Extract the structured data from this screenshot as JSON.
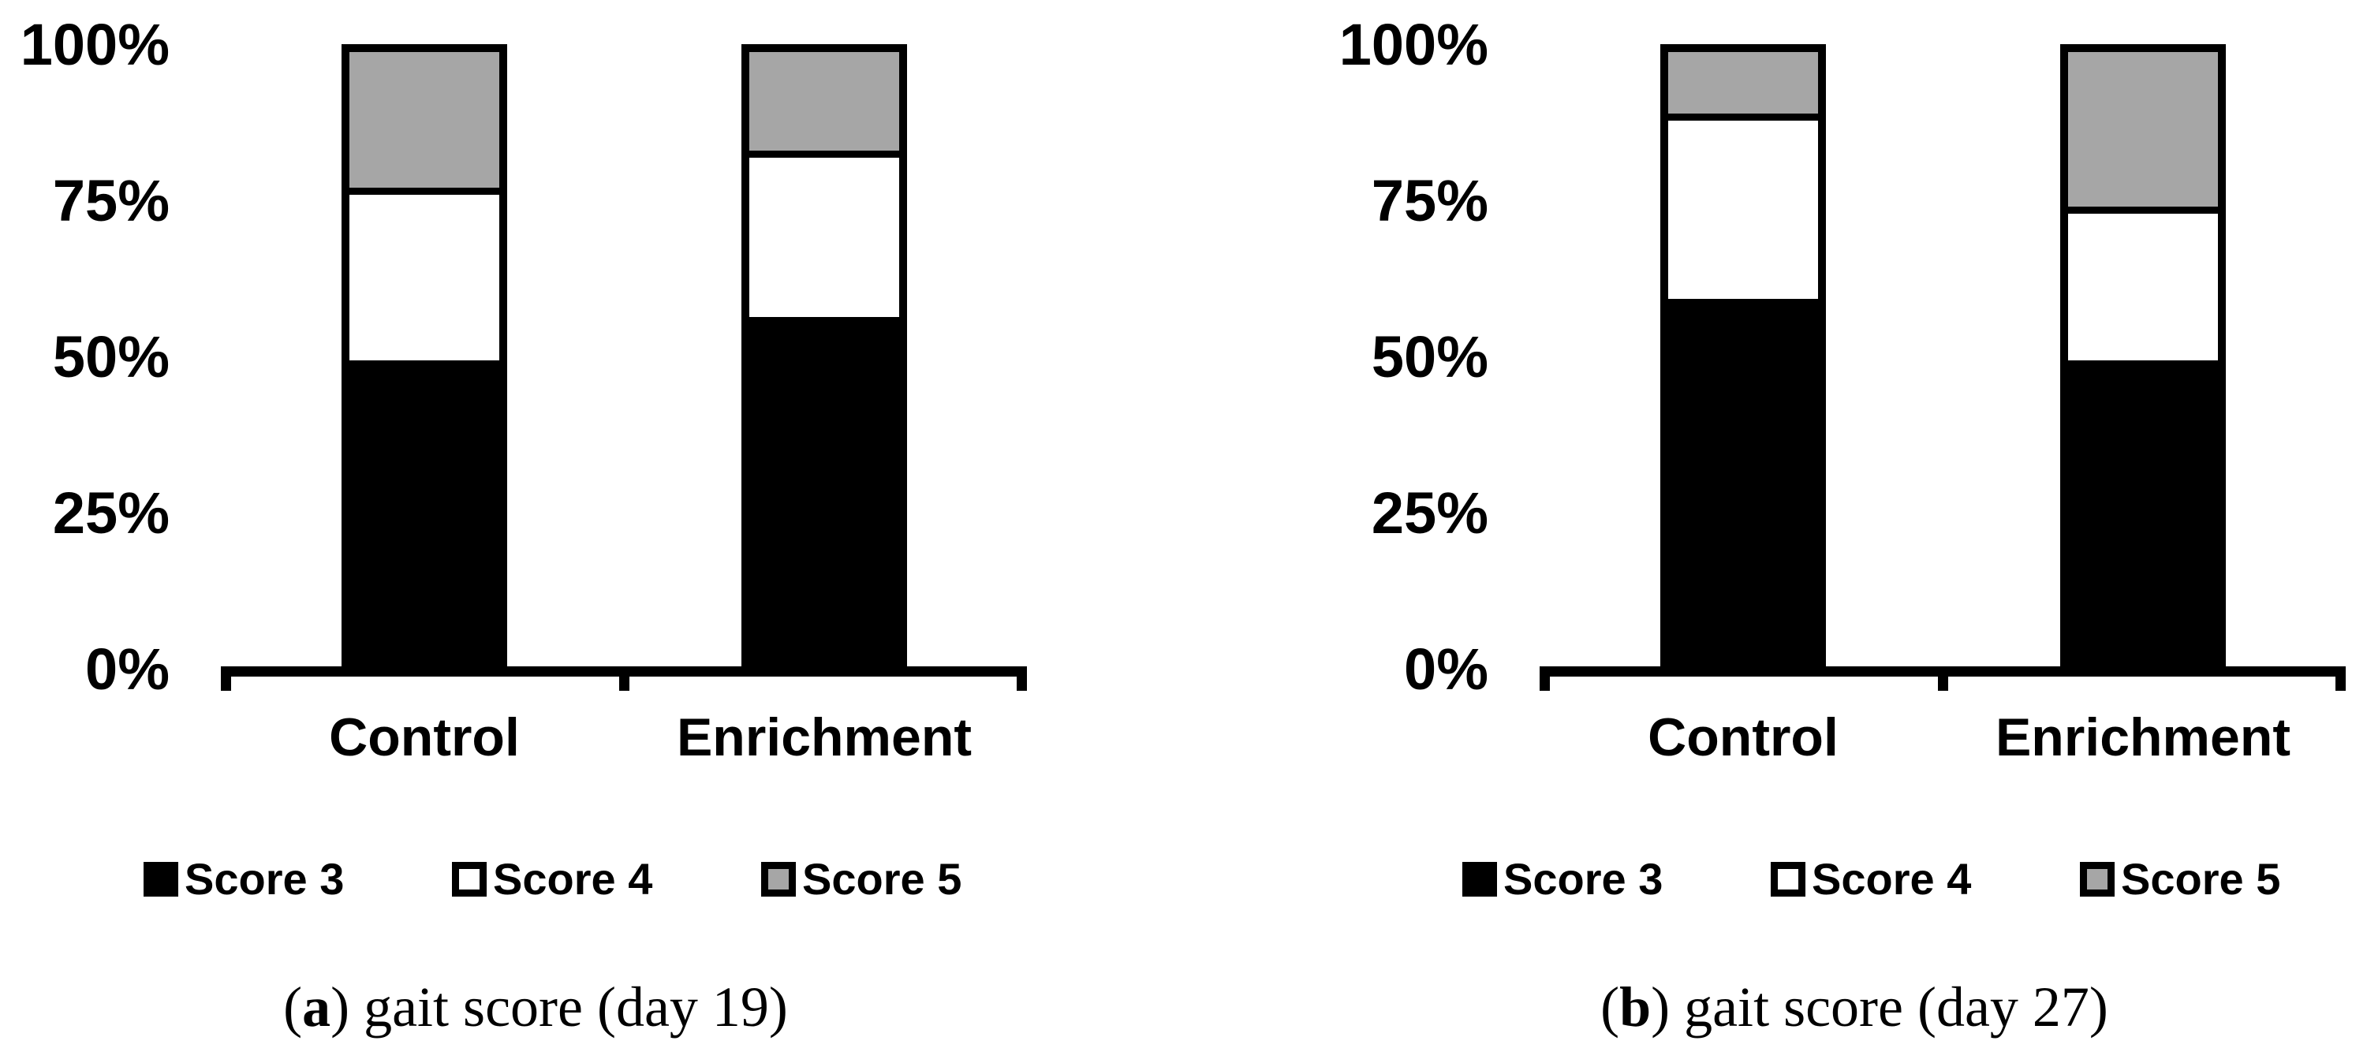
{
  "figure": {
    "background": "#ffffff",
    "text_color": "#000000",
    "colors": {
      "score3_fill": "#000000",
      "score4_fill": "#ffffff",
      "score5_fill": "#a6a6a6",
      "outline": "#000000"
    }
  },
  "chart_data": [
    {
      "type": "bar",
      "subtype": "stacked-100-percent",
      "panel": "a",
      "caption": {
        "open": "(",
        "letter": "a",
        "rest": ") gait score (day 19)"
      },
      "categories": [
        "Control",
        "Enrichment"
      ],
      "series": [
        {
          "name": "Score 3",
          "color": "#000000",
          "values": [
            50,
            57
          ]
        },
        {
          "name": "Score 4",
          "color": "#ffffff",
          "values": [
            28,
            27
          ]
        },
        {
          "name": "Score 5",
          "color": "#a6a6a6",
          "values": [
            22,
            16
          ]
        }
      ],
      "unit": "%",
      "ylim": [
        0,
        100
      ],
      "y_ticks": [
        "100%",
        "75%",
        "50%",
        "25%",
        "0%"
      ],
      "grid": false,
      "legend_position": "bottom"
    },
    {
      "type": "bar",
      "subtype": "stacked-100-percent",
      "panel": "b",
      "caption": {
        "open": "(",
        "letter": "b",
        "rest": ") gait score (day 27)"
      },
      "categories": [
        "Control",
        "Enrichment"
      ],
      "series": [
        {
          "name": "Score 3",
          "color": "#000000",
          "values": [
            60,
            50
          ]
        },
        {
          "name": "Score 4",
          "color": "#ffffff",
          "values": [
            30,
            25
          ]
        },
        {
          "name": "Score 5",
          "color": "#a6a6a6",
          "values": [
            10,
            25
          ]
        }
      ],
      "unit": "%",
      "ylim": [
        0,
        100
      ],
      "y_ticks": [
        "100%",
        "75%",
        "50%",
        "25%",
        "0%"
      ],
      "grid": false,
      "legend_position": "bottom"
    }
  ]
}
